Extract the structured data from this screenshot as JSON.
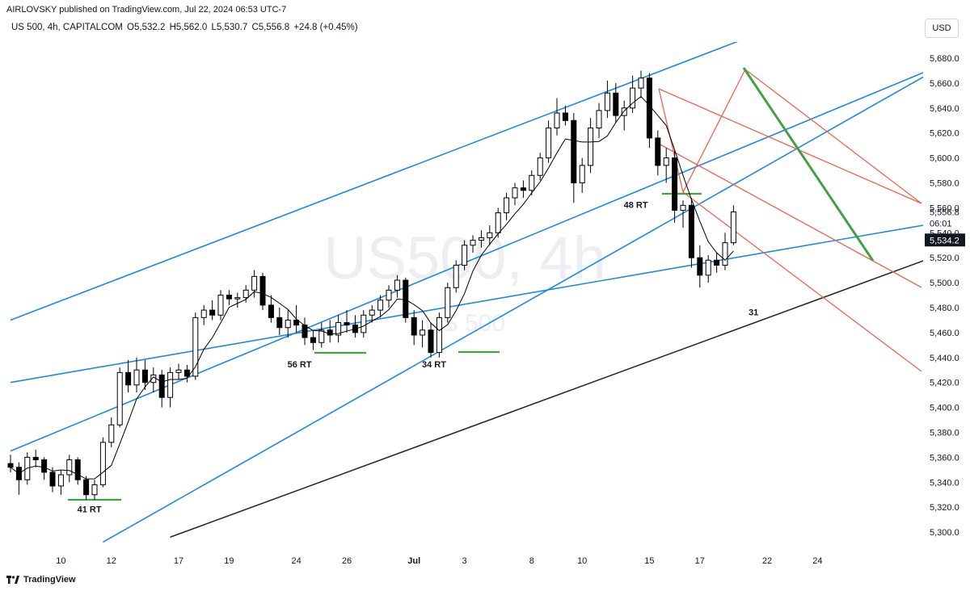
{
  "header": {
    "published": "AIRLOVSKY published on TradingView.com, Jul 22, 2024 06:53 UTC-7",
    "symbol": "US 500, 4h, CAPITALCOM",
    "open": "O5,532.2",
    "high": "H5,562.0",
    "low": "L5,530.7",
    "close": "C5,556.8",
    "change": "+24.8 (+0.45%)",
    "currency_button": "USD"
  },
  "footer": {
    "brand": "TradingView"
  },
  "colors": {
    "bull": "#ffffff",
    "bear": "#000000",
    "channel_blue": "#1e88e5",
    "red_channel": "#f2634d",
    "green": "#43a047",
    "support_black": "#2a2a2a",
    "watermark": "#eceef2"
  },
  "chart_data": {
    "type": "candlestick",
    "watermark": "US500, 4h",
    "watermark_sub": "US 500",
    "y_axis": {
      "ticks": [
        "5,680.0",
        "5,660.0",
        "5,640.0",
        "5,620.0",
        "5,600.0",
        "5,580.0",
        "5,560.0",
        "5,540.0",
        "5,520.0",
        "5,500.0",
        "5,480.0",
        "5,460.0",
        "5,440.0",
        "5,420.0",
        "5,400.0",
        "5,380.0",
        "5,360.0",
        "5,340.0",
        "5,320.0",
        "5,300.0"
      ],
      "tick_values": [
        5680,
        5660,
        5640,
        5620,
        5600,
        5580,
        5560,
        5540,
        5520,
        5500,
        5480,
        5460,
        5440,
        5420,
        5400,
        5380,
        5360,
        5340,
        5320,
        5300
      ],
      "range": [
        5292,
        5690
      ]
    },
    "x_axis": {
      "labels": [
        "10",
        "12",
        "17",
        "19",
        "24",
        "26",
        "Jul",
        "3",
        "8",
        "10",
        "15",
        "17",
        "22",
        "24"
      ],
      "label_bars": [
        6,
        12,
        20,
        26,
        34,
        40,
        48,
        54,
        62,
        68,
        76,
        82,
        90,
        96
      ]
    },
    "price_labels": {
      "last_price": "5,556.8",
      "countdown": "06:01",
      "marker_price": "5,534.2",
      "last_price_value": 5556.8,
      "marker_value": 5534.2
    },
    "annotations": [
      {
        "text": "41 RT",
        "bar": 9,
        "price": 5327
      },
      {
        "text": "56 RT",
        "bar": 34,
        "price": 5443
      },
      {
        "text": "34 RT",
        "bar": 50,
        "price": 5443
      },
      {
        "text": "48 RT",
        "bar": 74,
        "price": 5571
      },
      {
        "text": "31",
        "bar": 88,
        "price": 5485
      }
    ],
    "candles": [
      [
        5355,
        5362,
        5348,
        5352
      ],
      [
        5352,
        5356,
        5330,
        5342
      ],
      [
        5342,
        5364,
        5338,
        5360
      ],
      [
        5360,
        5366,
        5352,
        5358
      ],
      [
        5358,
        5360,
        5342,
        5348
      ],
      [
        5348,
        5352,
        5332,
        5337
      ],
      [
        5337,
        5350,
        5330,
        5346
      ],
      [
        5346,
        5362,
        5340,
        5358
      ],
      [
        5358,
        5360,
        5338,
        5342
      ],
      [
        5342,
        5345,
        5326,
        5330
      ],
      [
        5330,
        5342,
        5326,
        5338
      ],
      [
        5338,
        5376,
        5336,
        5372
      ],
      [
        5372,
        5392,
        5368,
        5386
      ],
      [
        5386,
        5432,
        5384,
        5428
      ],
      [
        5428,
        5438,
        5412,
        5418
      ],
      [
        5418,
        5440,
        5412,
        5430
      ],
      [
        5430,
        5438,
        5414,
        5420
      ],
      [
        5420,
        5432,
        5412,
        5426
      ],
      [
        5426,
        5430,
        5400,
        5408
      ],
      [
        5408,
        5432,
        5400,
        5428
      ],
      [
        5428,
        5435,
        5422,
        5430
      ],
      [
        5430,
        5434,
        5420,
        5425
      ],
      [
        5425,
        5476,
        5422,
        5472
      ],
      [
        5472,
        5482,
        5466,
        5478
      ],
      [
        5478,
        5486,
        5470,
        5474
      ],
      [
        5474,
        5494,
        5470,
        5490
      ],
      [
        5490,
        5494,
        5482,
        5487
      ],
      [
        5487,
        5492,
        5480,
        5488
      ],
      [
        5488,
        5498,
        5484,
        5494
      ],
      [
        5494,
        5510,
        5488,
        5505
      ],
      [
        5505,
        5508,
        5478,
        5482
      ],
      [
        5482,
        5490,
        5468,
        5472
      ],
      [
        5472,
        5480,
        5458,
        5464
      ],
      [
        5464,
        5478,
        5456,
        5470
      ],
      [
        5470,
        5482,
        5460,
        5466
      ],
      [
        5466,
        5472,
        5450,
        5456
      ],
      [
        5456,
        5462,
        5446,
        5452
      ],
      [
        5452,
        5468,
        5448,
        5462
      ],
      [
        5462,
        5470,
        5452,
        5458
      ],
      [
        5458,
        5474,
        5452,
        5468
      ],
      [
        5468,
        5478,
        5460,
        5466
      ],
      [
        5466,
        5474,
        5456,
        5460
      ],
      [
        5460,
        5478,
        5456,
        5474
      ],
      [
        5474,
        5482,
        5468,
        5478
      ],
      [
        5478,
        5490,
        5472,
        5486
      ],
      [
        5486,
        5498,
        5480,
        5494
      ],
      [
        5494,
        5506,
        5488,
        5502
      ],
      [
        5502,
        5504,
        5468,
        5472
      ],
      [
        5472,
        5478,
        5450,
        5458
      ],
      [
        5458,
        5470,
        5448,
        5462
      ],
      [
        5462,
        5468,
        5440,
        5444
      ],
      [
        5444,
        5476,
        5440,
        5472
      ],
      [
        5472,
        5500,
        5468,
        5496
      ],
      [
        5496,
        5518,
        5492,
        5514
      ],
      [
        5514,
        5534,
        5510,
        5530
      ],
      [
        5530,
        5538,
        5524,
        5534
      ],
      [
        5534,
        5542,
        5528,
        5536
      ],
      [
        5536,
        5546,
        5530,
        5540
      ],
      [
        5540,
        5560,
        5536,
        5556
      ],
      [
        5556,
        5572,
        5550,
        5568
      ],
      [
        5568,
        5580,
        5562,
        5576
      ],
      [
        5576,
        5582,
        5568,
        5574
      ],
      [
        5574,
        5590,
        5570,
        5586
      ],
      [
        5586,
        5604,
        5582,
        5600
      ],
      [
        5600,
        5630,
        5596,
        5624
      ],
      [
        5624,
        5648,
        5618,
        5636
      ],
      [
        5636,
        5642,
        5626,
        5630
      ],
      [
        5630,
        5636,
        5564,
        5580
      ],
      [
        5580,
        5600,
        5572,
        5594
      ],
      [
        5594,
        5632,
        5588,
        5624
      ],
      [
        5624,
        5644,
        5616,
        5638
      ],
      [
        5638,
        5662,
        5632,
        5652
      ],
      [
        5652,
        5660,
        5628,
        5634
      ],
      [
        5634,
        5646,
        5622,
        5640
      ],
      [
        5640,
        5666,
        5636,
        5656
      ],
      [
        5656,
        5670,
        5648,
        5664
      ],
      [
        5664,
        5668,
        5608,
        5616
      ],
      [
        5616,
        5622,
        5586,
        5594
      ],
      [
        5594,
        5608,
        5580,
        5600
      ],
      [
        5600,
        5606,
        5548,
        5558
      ],
      [
        5558,
        5566,
        5544,
        5562
      ],
      [
        5562,
        5568,
        5512,
        5520
      ],
      [
        5520,
        5530,
        5496,
        5506
      ],
      [
        5506,
        5522,
        5500,
        5518
      ],
      [
        5518,
        5524,
        5508,
        5514
      ],
      [
        5514,
        5540,
        5510,
        5532
      ],
      [
        5532,
        5562,
        5530,
        5556.8
      ]
    ],
    "drawings": {
      "blue_channel_upper": [
        [
          0,
          5470
        ],
        [
          91,
          5705
        ]
      ],
      "blue_channel_mid": [
        [
          0,
          5365
        ],
        [
          112,
          5678
        ]
      ],
      "blue_channel_lower": [
        [
          11,
          5292
        ],
        [
          112,
          5678
        ]
      ],
      "blue_trend_flat": [
        [
          0,
          5420
        ],
        [
          112,
          5550
        ]
      ],
      "black_support": [
        [
          19,
          5296
        ],
        [
          112,
          5526
        ]
      ]
    }
  }
}
